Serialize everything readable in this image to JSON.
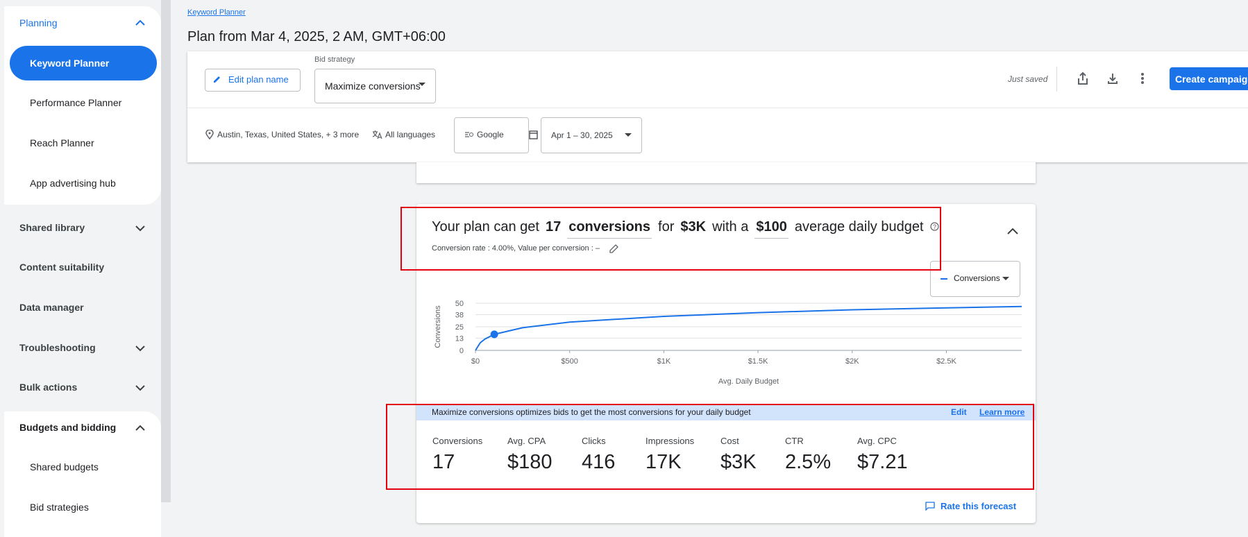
{
  "sidebar": {
    "planning": {
      "title": "Planning",
      "items": [
        "Keyword Planner",
        "Performance Planner",
        "Reach Planner",
        "App advertising hub"
      ]
    },
    "links": [
      "Shared library",
      "Content suitability",
      "Data manager",
      "Troubleshooting",
      "Bulk actions"
    ],
    "budgets": {
      "title": "Budgets and bidding",
      "items": [
        "Shared budgets",
        "Bid strategies"
      ]
    }
  },
  "header": {
    "breadcrumb": "Keyword Planner",
    "title": "Plan from Mar 4, 2025, 2 AM, GMT+06:00"
  },
  "toolbar": {
    "edit_plan": "Edit plan name",
    "bid_strategy_label": "Bid strategy",
    "bid_strategy": "Maximize conversions",
    "status": "Just saved",
    "create_campaign": "Create campaign",
    "location": "Austin, Texas, United States, + 3 more",
    "language": "All languages",
    "network": "Google",
    "date_range": "Apr 1 – 30, 2025"
  },
  "summary": {
    "parts": [
      "Your plan can get",
      "17",
      "conversions",
      "for",
      "$3K",
      "with a",
      "$100",
      "average daily budget"
    ],
    "subtitle": "Conversion rate : 4.00%, Value per conversion : –",
    "metric_select": "Conversions"
  },
  "chart_data": {
    "type": "line",
    "y_label": "Conversions",
    "x_label": "Avg. Daily Budget",
    "x": [
      0,
      25,
      50,
      100,
      250,
      500,
      1000,
      1500,
      2000,
      2500,
      2900
    ],
    "series": [
      {
        "name": "Conversions",
        "color": "#1a73e8",
        "values": [
          0,
          8,
          12,
          17,
          24,
          30,
          36,
          40,
          43,
          45,
          46.5
        ]
      }
    ],
    "highlight_x": 100,
    "xlim": [
      0,
      2900
    ],
    "xticks": [
      {
        "value": 0,
        "label": "$0"
      },
      {
        "value": 500,
        "label": "$500"
      },
      {
        "value": 1000,
        "label": "$1K"
      },
      {
        "value": 1500,
        "label": "$1.5K"
      },
      {
        "value": 2000,
        "label": "$2K"
      },
      {
        "value": 2500,
        "label": "$2.5K"
      }
    ],
    "ylim": [
      0,
      50
    ],
    "yticks": [
      0,
      13,
      25,
      38,
      50
    ],
    "grid": true
  },
  "banner": {
    "text": "Maximize conversions optimizes bids to get the most conversions for your daily budget",
    "edit": "Edit",
    "learn_more": "Learn more"
  },
  "metrics": [
    {
      "label": "Conversions",
      "value": "17"
    },
    {
      "label": "Avg. CPA",
      "value": "$180"
    },
    {
      "label": "Clicks",
      "value": "416"
    },
    {
      "label": "Impressions",
      "value": "17K"
    },
    {
      "label": "Cost",
      "value": "$3K"
    },
    {
      "label": "CTR",
      "value": "2.5%"
    },
    {
      "label": "Avg. CPC",
      "value": "$7.21"
    }
  ],
  "footer": {
    "rate": "Rate this forecast"
  }
}
